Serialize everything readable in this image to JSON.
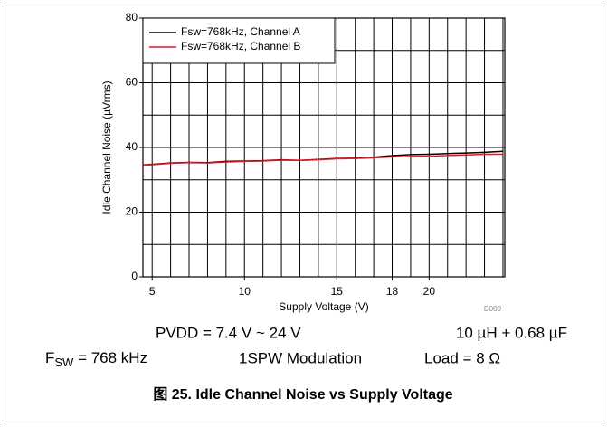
{
  "chart_data": {
    "type": "line",
    "y_label": "Idle Channel Noise (µVrms)",
    "x_label": "Supply Voltage (V)",
    "code": "D000",
    "x": [
      4.5,
      5,
      6,
      7,
      8,
      9,
      10,
      11,
      12,
      13,
      14,
      15,
      16,
      17,
      18,
      19,
      20,
      21,
      22,
      23,
      24
    ],
    "series": [
      {
        "name": "Fsw=768kHz, Channel A",
        "color": "#000000",
        "values": [
          34.6,
          34.8,
          35.2,
          35.4,
          35.3,
          35.7,
          35.8,
          35.9,
          36.2,
          36.0,
          36.3,
          36.6,
          36.7,
          37.0,
          37.5,
          37.8,
          37.9,
          38.1,
          38.3,
          38.5,
          38.8
        ]
      },
      {
        "name": "Fsw=768kHz, Channel B",
        "color": "#e8191e",
        "values": [
          34.5,
          34.7,
          35.1,
          35.3,
          35.2,
          35.5,
          35.7,
          35.8,
          36.1,
          36.0,
          36.2,
          36.5,
          36.6,
          36.8,
          37.1,
          37.2,
          37.3,
          37.5,
          37.7,
          37.9,
          37.9
        ]
      }
    ],
    "xlim": [
      4.5,
      24.1
    ],
    "xticks": [
      5,
      10,
      15,
      18,
      20
    ],
    "xgrid": [
      5,
      6,
      7,
      8,
      9,
      10,
      11,
      12,
      13,
      14,
      15,
      16,
      17,
      18,
      19,
      20,
      21,
      22,
      23,
      24
    ],
    "ylim": [
      0,
      80
    ],
    "yticks": [
      0,
      20,
      40,
      60,
      80
    ],
    "ygrid": [
      10,
      20,
      30,
      40,
      50,
      60,
      70
    ],
    "grid": true,
    "legend": "upper left"
  },
  "notes": {
    "pvdd": "PVDD = 7.4 V ~ 24 V",
    "lc": "10 µH + 0.68 µF",
    "fsw_base": "F",
    "fsw_sub": "SW",
    "fsw_rest": " = 768 kHz",
    "modulation": "1SPW Modulation",
    "load": "Load = 8 Ω"
  },
  "caption": "图 25. Idle Channel Noise vs Supply Voltage"
}
